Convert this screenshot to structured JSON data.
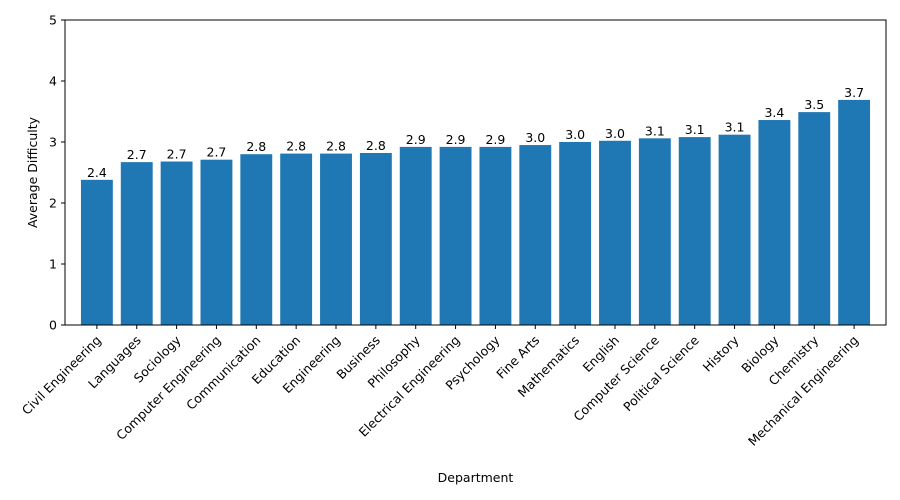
{
  "colors": {
    "bar": "#1f77b4",
    "axis": "#000000",
    "background": "#ffffff"
  },
  "chart_data": {
    "type": "bar",
    "title": "",
    "xlabel": "Department",
    "ylabel": "Average Difficulty",
    "ylim": [
      0,
      5
    ],
    "yticks": [
      0,
      1,
      2,
      3,
      4,
      5
    ],
    "grid": false,
    "categories": [
      "Civil Engineering",
      "Languages",
      "Sociology",
      "Computer Engineering",
      "Communication",
      "Education",
      "Engineering",
      "Business",
      "Philosophy",
      "Electrical Engineering",
      "Psychology",
      "Fine Arts",
      "Mathematics",
      "English",
      "Computer Science",
      "Political Science",
      "History",
      "Biology",
      "Chemistry",
      "Mechanical Engineering"
    ],
    "values": [
      2.38,
      2.67,
      2.68,
      2.71,
      2.8,
      2.81,
      2.81,
      2.82,
      2.92,
      2.92,
      2.92,
      2.95,
      3.0,
      3.02,
      3.06,
      3.08,
      3.12,
      3.36,
      3.49,
      3.69
    ],
    "data_labels": [
      "2.4",
      "2.7",
      "2.7",
      "2.7",
      "2.8",
      "2.8",
      "2.8",
      "2.8",
      "2.9",
      "2.9",
      "2.9",
      "3.0",
      "3.0",
      "3.0",
      "3.1",
      "3.1",
      "3.1",
      "3.4",
      "3.5",
      "3.7"
    ]
  }
}
